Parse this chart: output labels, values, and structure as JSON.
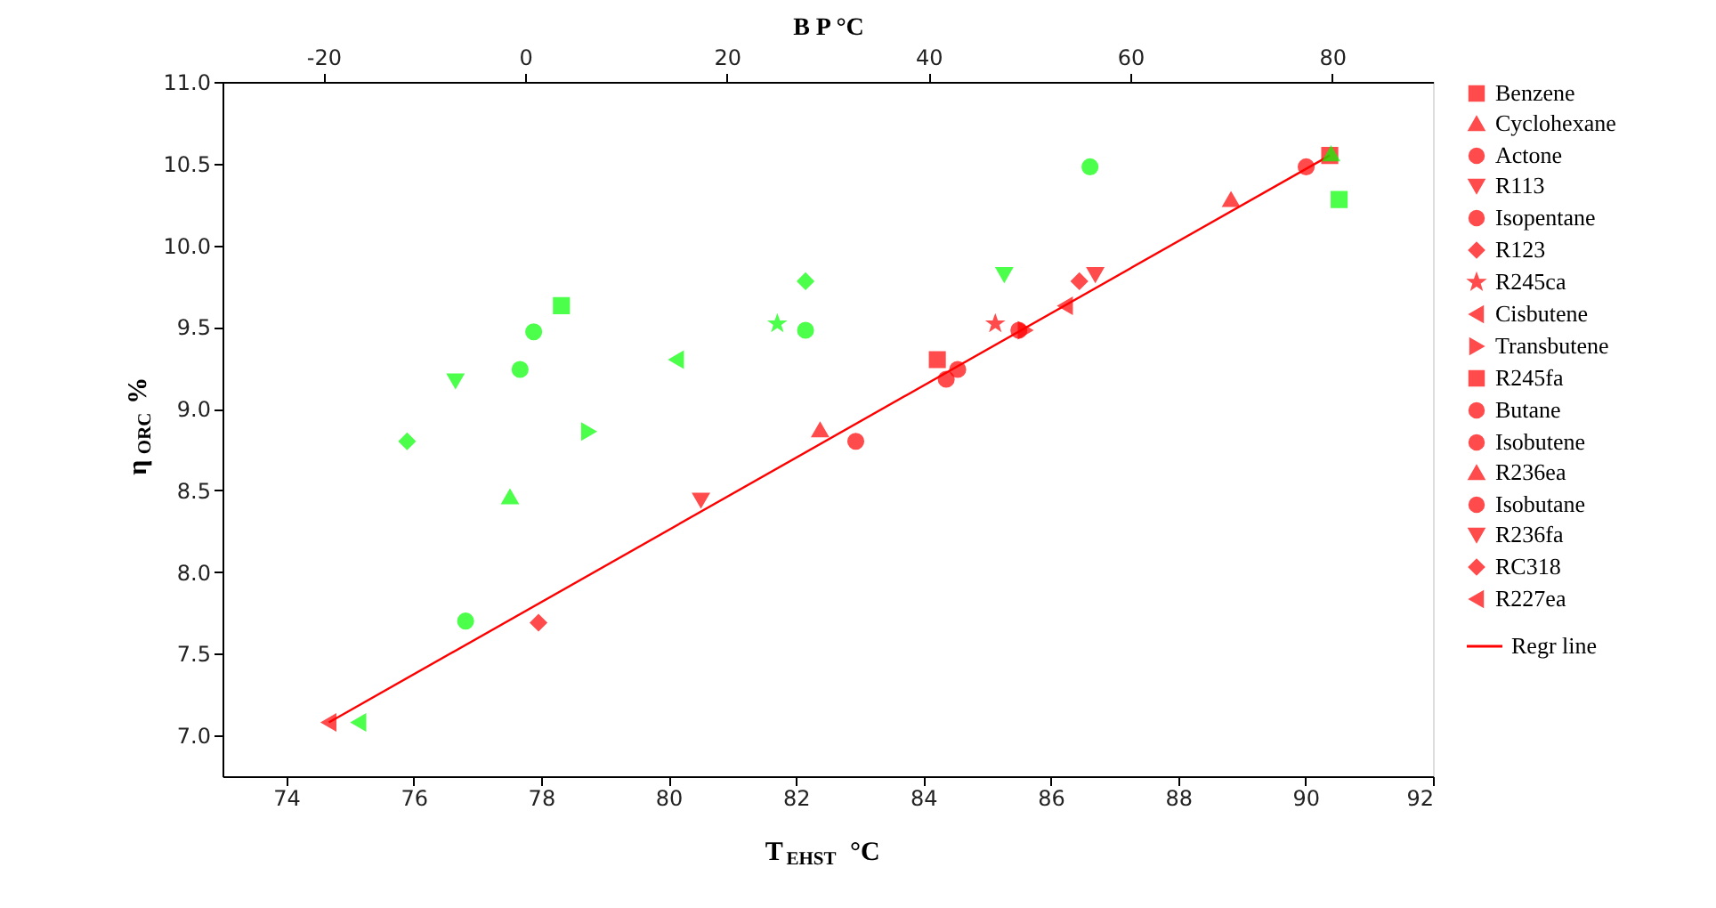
{
  "chart_data": {
    "type": "scatter",
    "xlabel": "T$_{EHST}$ °C",
    "x2label": "B P °C",
    "ylabel": "η$_{ORC}$ %",
    "xlim": [
      73,
      92
    ],
    "xticks": [
      74,
      76,
      78,
      80,
      82,
      84,
      86,
      88,
      90,
      92
    ],
    "x2lim": [
      -30,
      90
    ],
    "x2ticks": [
      -20,
      0,
      20,
      40,
      60,
      80
    ],
    "ylim": [
      6.75,
      11.0
    ],
    "yticks": [
      {
        "value": 7,
        "label": "7.0"
      },
      {
        "value": 7.5,
        "label": "7.5"
      },
      {
        "value": 8,
        "label": "8.0"
      },
      {
        "value": 8.5,
        "label": "8.5"
      },
      {
        "value": 9,
        "label": "9.0"
      },
      {
        "value": 9.5,
        "label": "9.5"
      },
      {
        "value": 10,
        "label": "10.0"
      },
      {
        "value": 10.5,
        "label": "10.5"
      },
      {
        "value": 11,
        "label": "11.0"
      }
    ],
    "grid": false,
    "legend": "right",
    "series": [
      {
        "name": "Benzene",
        "color": "#ff0000",
        "marker": "square",
        "x": [
          90.38
        ],
        "values": [
          10.55
        ]
      },
      {
        "name": "Cyclohexane",
        "color": "#ff0000",
        "marker": "triangle",
        "x": [
          88.83
        ],
        "values": [
          10.28
        ]
      },
      {
        "name": "Actone",
        "color": "#ff0000",
        "marker": "circle",
        "x": [
          90.01
        ],
        "values": [
          10.48
        ]
      },
      {
        "name": "R113",
        "color": "#ff0000",
        "marker": "triangle-down",
        "x": [
          86.7
        ],
        "values": [
          9.82
        ]
      },
      {
        "name": "Isopentane",
        "color": "#ff0000",
        "marker": "circle",
        "x": [
          84.54
        ],
        "values": [
          9.24
        ]
      },
      {
        "name": "R123",
        "color": "#ff0000",
        "marker": "diamond",
        "x": [
          86.45
        ],
        "values": [
          9.78
        ]
      },
      {
        "name": "R245ca",
        "color": "#ff0000",
        "marker": "star",
        "x": [
          85.13
        ],
        "values": [
          9.52
        ]
      },
      {
        "name": "Cisbutene",
        "color": "#ff0000",
        "marker": "triangle-left",
        "x": [
          86.23
        ],
        "values": [
          9.63
        ]
      },
      {
        "name": "Transbutene",
        "color": "#ff0000",
        "marker": "triangle-right",
        "x": [
          85.6
        ],
        "values": [
          9.48
        ]
      },
      {
        "name": "R245fa",
        "color": "#ff0000",
        "marker": "square",
        "x": [
          84.22
        ],
        "values": [
          9.3
        ]
      },
      {
        "name": "Butane",
        "color": "#ff0000",
        "marker": "circle",
        "x": [
          85.5
        ],
        "values": [
          9.48
        ]
      },
      {
        "name": "Isobutene",
        "color": "#ff0000",
        "marker": "circle",
        "x": [
          84.36
        ],
        "values": [
          9.18
        ]
      },
      {
        "name": "R236ea",
        "color": "#ff0000",
        "marker": "triangle",
        "x": [
          82.38
        ],
        "values": [
          8.87
        ]
      },
      {
        "name": "Isobutane",
        "color": "#ff0000",
        "marker": "circle",
        "x": [
          82.94
        ],
        "values": [
          8.8
        ]
      },
      {
        "name": "R236fa",
        "color": "#ff0000",
        "marker": "triangle-down",
        "x": [
          80.51
        ],
        "values": [
          8.44
        ]
      },
      {
        "name": "RC318",
        "color": "#ff0000",
        "marker": "diamond",
        "x": [
          77.96
        ],
        "values": [
          7.69
        ]
      },
      {
        "name": "R227ea",
        "color": "#ff0000",
        "marker": "triangle-left",
        "x": [
          74.67
        ],
        "values": [
          7.08
        ]
      },
      {
        "color": "#00ff00",
        "axis": "x2",
        "marker": "square",
        "x": [
          80.7
        ],
        "values": [
          10.28
        ]
      },
      {
        "color": "#00ff00",
        "axis": "x2",
        "marker": "triangle",
        "x": [
          79.9
        ],
        "values": [
          10.56
        ]
      },
      {
        "color": "#00ff00",
        "axis": "x2",
        "marker": "circle",
        "x": [
          56.0
        ],
        "values": [
          10.48
        ]
      },
      {
        "color": "#00ff00",
        "axis": "x2",
        "marker": "triangle-down",
        "x": [
          47.5
        ],
        "values": [
          9.82
        ]
      },
      {
        "color": "#00ff00",
        "axis": "x2",
        "marker": "circle",
        "x": [
          27.8
        ],
        "values": [
          9.48
        ]
      },
      {
        "color": "#00ff00",
        "axis": "x2",
        "marker": "diamond",
        "x": [
          27.8
        ],
        "values": [
          9.78
        ]
      },
      {
        "color": "#00ff00",
        "axis": "x2",
        "marker": "star",
        "x": [
          25.0
        ],
        "values": [
          9.52
        ]
      },
      {
        "color": "#00ff00",
        "axis": "x2",
        "marker": "triangle-left",
        "x": [
          15.0
        ],
        "values": [
          9.3
        ]
      },
      {
        "color": "#00ff00",
        "axis": "x2",
        "marker": "triangle-right",
        "x": [
          6.3
        ],
        "values": [
          8.86
        ]
      },
      {
        "color": "#00ff00",
        "axis": "x2",
        "marker": "square",
        "x": [
          3.6
        ],
        "values": [
          9.63
        ]
      },
      {
        "color": "#00ff00",
        "axis": "x2",
        "marker": "circle",
        "x": [
          0.85
        ],
        "values": [
          9.47
        ]
      },
      {
        "color": "#00ff00",
        "axis": "x2",
        "marker": "circle",
        "x": [
          -0.5
        ],
        "values": [
          9.24
        ]
      },
      {
        "color": "#00ff00",
        "axis": "x2",
        "marker": "triangle",
        "x": [
          -1.5
        ],
        "values": [
          8.46
        ]
      },
      {
        "color": "#00ff00",
        "axis": "x2",
        "marker": "circle",
        "x": [
          -5.9
        ],
        "values": [
          7.7
        ]
      },
      {
        "color": "#00ff00",
        "axis": "x2",
        "marker": "triangle-down",
        "x": [
          -6.9
        ],
        "values": [
          9.17
        ]
      },
      {
        "color": "#00ff00",
        "axis": "x2",
        "marker": "diamond",
        "x": [
          -11.7
        ],
        "values": [
          8.8
        ]
      },
      {
        "color": "#00ff00",
        "axis": "x2",
        "marker": "triangle-left",
        "x": [
          -16.5
        ],
        "values": [
          7.08
        ]
      },
      {
        "name": "Regr line",
        "type": "line",
        "color": "#ff0000",
        "line_style": "solid",
        "x": [
          74.67,
          90.38
        ],
        "values": [
          7.08,
          10.55
        ]
      }
    ]
  }
}
